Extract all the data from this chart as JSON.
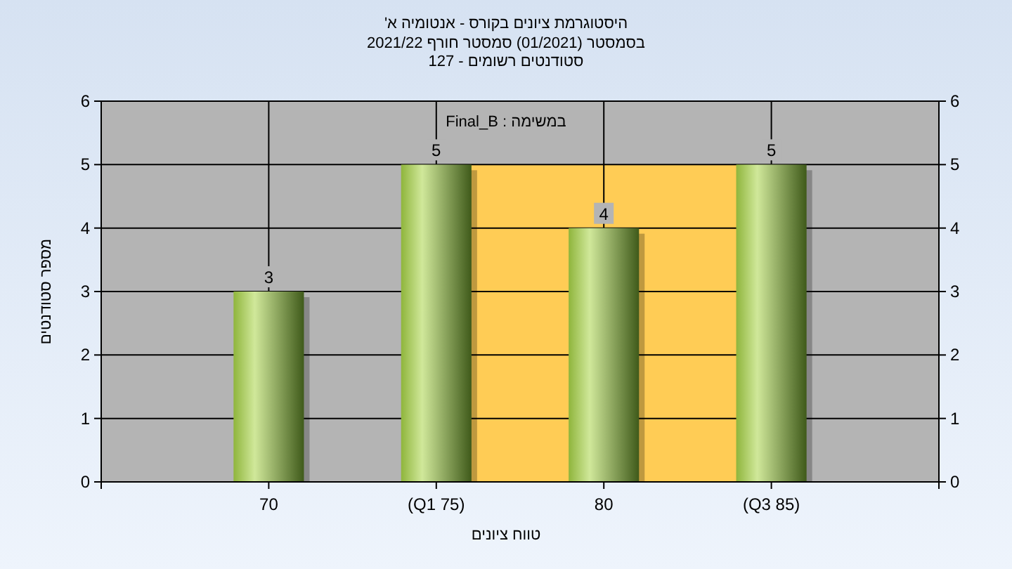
{
  "chart_data": {
    "type": "bar",
    "title": "היסטוגרמת ציונים בקורס - אנטומיה א'",
    "subtitle": [
      "בסמסטר (01/2021) סמסטר חורף 2021/22",
      "סטודנטים רשומים - 127"
    ],
    "annotations": [
      "במשימה : Final_B"
    ],
    "xlabel": "טווח ציונים",
    "ylabel": "מספר סטודנטים",
    "categories": [
      "70",
      "(Q1 75)",
      "80",
      "(Q3 85)"
    ],
    "values": [
      3,
      5,
      4,
      5
    ],
    "color": "#8fb53c",
    "ylim": [
      0,
      6
    ],
    "yticks": [
      0,
      1,
      2,
      3,
      4,
      5,
      6
    ],
    "y2lim": [
      0,
      6
    ],
    "y2ticks": [
      0,
      1,
      2,
      3,
      4,
      5,
      6
    ],
    "bands": [
      {
        "axis": "x",
        "from": "(Q1 75)",
        "to": "(Q3 85)",
        "color": "#ffcc55"
      }
    ],
    "grid": true,
    "data_labels": true
  }
}
